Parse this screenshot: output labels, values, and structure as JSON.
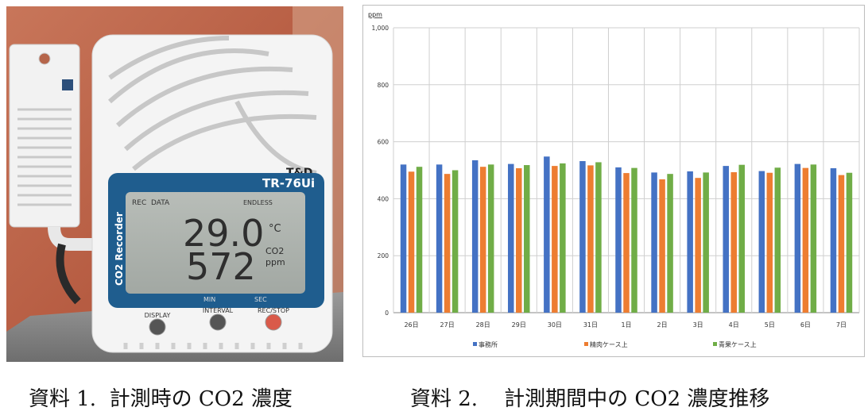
{
  "photo": {
    "model": "TR-76Ui",
    "brand": "T&D",
    "lcd": {
      "rec": "REC",
      "data": "DATA",
      "endless": "ENDLESS",
      "temperature": "29.0",
      "temp_unit": "°C",
      "co2": "572",
      "co2_unit_line1": "CO2",
      "co2_unit_line2": "ppm",
      "min": "MIN",
      "sec": "SEC"
    },
    "side_label": "CO2 Recorder",
    "buttons": [
      "DISPLAY",
      "INTERVAL",
      "REC/STOP"
    ]
  },
  "chart_data": {
    "type": "bar",
    "unit": "ppm",
    "ylim": [
      0,
      1000
    ],
    "yticks": [
      0,
      200,
      400,
      600,
      800,
      1000
    ],
    "ytick_labels": [
      "0",
      "200",
      "400",
      "600",
      "800",
      "1,000"
    ],
    "categories": [
      "26日",
      "27日",
      "28日",
      "29日",
      "30日",
      "31日",
      "1日",
      "2日",
      "3日",
      "4日",
      "5日",
      "6日",
      "7日"
    ],
    "series": [
      {
        "name": "事務所",
        "color": "#4472c4",
        "values": [
          520,
          520,
          535,
          522,
          548,
          532,
          510,
          492,
          496,
          515,
          497,
          522,
          507
        ]
      },
      {
        "name": "精肉ケース上",
        "color": "#ed7d31",
        "values": [
          495,
          487,
          512,
          507,
          515,
          517,
          490,
          468,
          473,
          493,
          491,
          508,
          483
        ]
      },
      {
        "name": "青果ケース上",
        "color": "#70ad47",
        "values": [
          512,
          500,
          520,
          518,
          524,
          528,
          508,
          487,
          492,
          519,
          509,
          520,
          491
        ]
      }
    ],
    "grid": true,
    "legend": "bottom"
  },
  "captions": {
    "left": "資料 1.  計測時の CO2 濃度",
    "right": "資料 2.    計測期間中の CO2 濃度推移"
  }
}
